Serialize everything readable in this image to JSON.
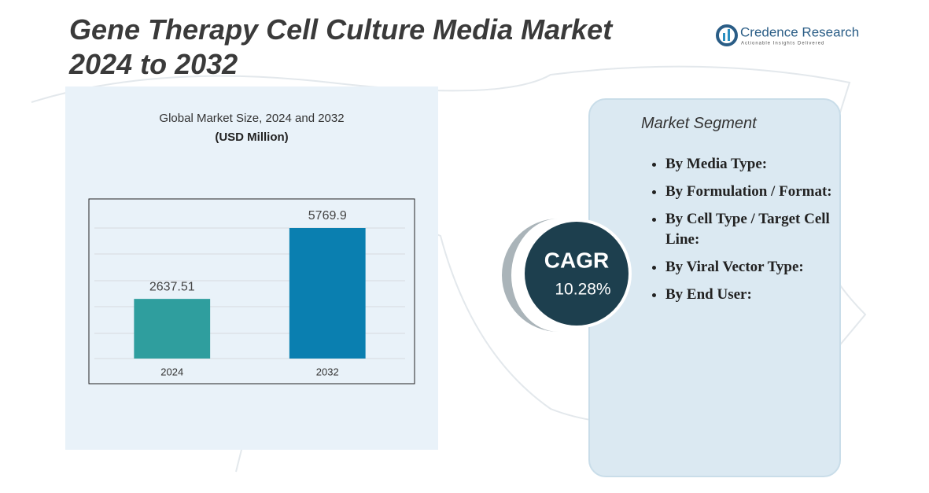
{
  "header": {
    "title_line1": "Gene Therapy Cell Culture Media Market",
    "title_line2": "2024 to 2032"
  },
  "logo": {
    "name": "Credence Research",
    "tagline": "Actionable Insights Delivered"
  },
  "chart_data": {
    "type": "bar",
    "title": "Global Market Size,  2024 and 2032",
    "subtitle": "(USD Million)",
    "categories": [
      "2024",
      "2032"
    ],
    "values": [
      2637.51,
      5769.9
    ],
    "colors": [
      "#2f9e9e",
      "#0a7fb0"
    ],
    "ylim": [
      0,
      6500
    ]
  },
  "cagr": {
    "label": "CAGR",
    "value": "10.28%"
  },
  "segments": {
    "heading": "Market Segment",
    "items": [
      "By Media Type:",
      "By Formulation / Format:",
      "By Cell Type / Target Cell Line:",
      "By Viral Vector Type:",
      "By End User:"
    ]
  }
}
